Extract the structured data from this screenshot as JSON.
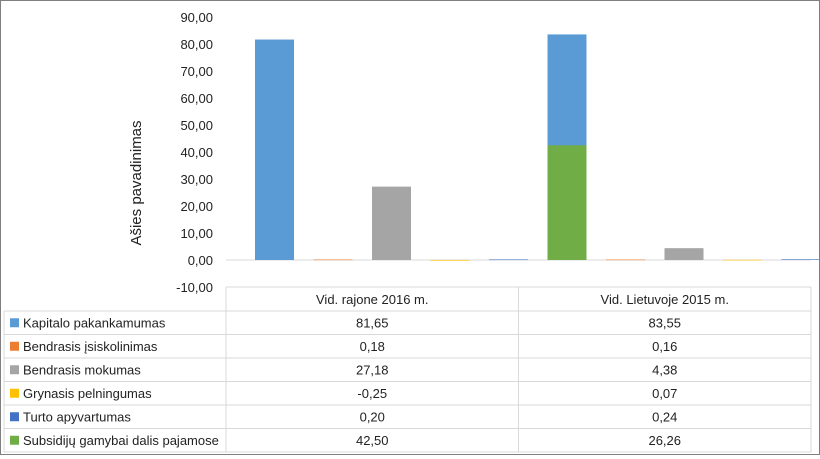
{
  "chart_data": {
    "type": "bar",
    "ylabel": "Ašies pavadinimas",
    "ylim": [
      -10,
      90
    ],
    "y_step": 10,
    "y_tick_labels": [
      "-10,00",
      "0,00",
      "10,00",
      "20,00",
      "30,00",
      "40,00",
      "50,00",
      "60,00",
      "70,00",
      "80,00",
      "90,00"
    ],
    "grid": false,
    "legend": "data-table",
    "categories": [
      "Vid. rajone 2016 m.",
      "Vid. Lietuvoje 2015 m."
    ],
    "series": [
      {
        "name": "Kapitalo pakankamumas",
        "color": "#5b9bd5",
        "values": [
          81.65,
          83.55
        ],
        "labels": [
          "81,65",
          "83,55"
        ]
      },
      {
        "name": "Bendrasis įsiskolinimas",
        "color": "#ed7d31",
        "values": [
          0.18,
          0.16
        ],
        "labels": [
          "0,18",
          "0,16"
        ]
      },
      {
        "name": "Bendrasis mokumas",
        "color": "#a5a5a5",
        "values": [
          27.18,
          4.38
        ],
        "labels": [
          "27,18",
          "4,38"
        ]
      },
      {
        "name": "Grynasis pelningumas",
        "color": "#ffc000",
        "values": [
          -0.25,
          0.07
        ],
        "labels": [
          "-0,25",
          "0,07"
        ]
      },
      {
        "name": "Turto apyvartumas",
        "color": "#4472c4",
        "values": [
          0.2,
          0.24
        ],
        "labels": [
          "0,20",
          "0,24"
        ]
      },
      {
        "name": "Subsidijų gamybai dalis pajamose",
        "color": "#70ad47",
        "values": [
          42.5,
          26.26
        ],
        "labels": [
          "42,50",
          "26,26"
        ]
      }
    ]
  }
}
